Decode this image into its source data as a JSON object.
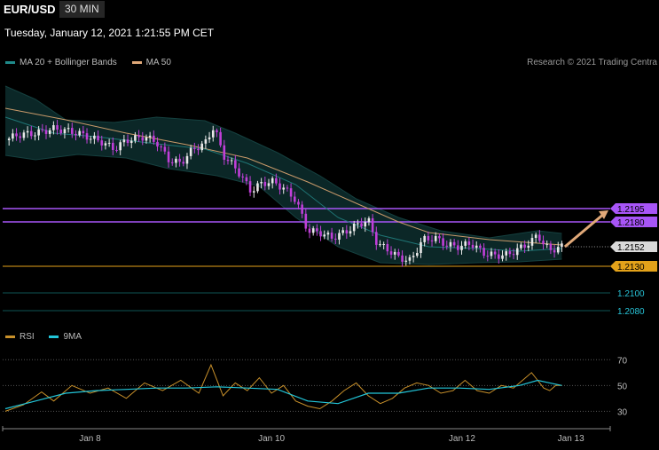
{
  "header": {
    "symbol": "EUR/USD",
    "timeframe": "30 MIN",
    "datetime": "Tuesday, January 12, 2021 1:21:55 PM CET",
    "credit": "Research © 2021 Trading Centra"
  },
  "legend": {
    "main": [
      {
        "label": "MA 20 + Bollinger Bands",
        "color": "#1f8a8a"
      },
      {
        "label": "MA 50",
        "color": "#e0a878"
      }
    ],
    "rsi": [
      {
        "label": "RSI",
        "color": "#c8902a"
      },
      {
        "label": "9MA",
        "color": "#22c5d8"
      }
    ]
  },
  "chart_data": {
    "type": "candlestick",
    "ylim": [
      1.207,
      1.2345
    ],
    "x_ticks": [
      {
        "label": "Jan 8",
        "t": 0.14
      },
      {
        "label": "Jan 10",
        "t": 0.44
      },
      {
        "label": "Jan 12",
        "t": 0.755
      },
      {
        "label": "Jan 13",
        "t": 0.935
      }
    ],
    "close_path": [
      [
        0.0,
        1.2272
      ],
      [
        0.02,
        1.2278
      ],
      [
        0.05,
        1.228
      ],
      [
        0.08,
        1.2285
      ],
      [
        0.1,
        1.2283
      ],
      [
        0.12,
        1.228
      ],
      [
        0.14,
        1.2275
      ],
      [
        0.16,
        1.227
      ],
      [
        0.18,
        1.2262
      ],
      [
        0.2,
        1.2272
      ],
      [
        0.23,
        1.2276
      ],
      [
        0.25,
        1.227
      ],
      [
        0.27,
        1.225
      ],
      [
        0.29,
        1.2246
      ],
      [
        0.31,
        1.2262
      ],
      [
        0.33,
        1.2268
      ],
      [
        0.345,
        1.2288
      ],
      [
        0.36,
        1.2255
      ],
      [
        0.375,
        1.2245
      ],
      [
        0.39,
        1.2232
      ],
      [
        0.405,
        1.2215
      ],
      [
        0.42,
        1.2222
      ],
      [
        0.44,
        1.2226
      ],
      [
        0.46,
        1.2218
      ],
      [
        0.48,
        1.2205
      ],
      [
        0.5,
        1.217
      ],
      [
        0.52,
        1.2168
      ],
      [
        0.54,
        1.2162
      ],
      [
        0.56,
        1.2168
      ],
      [
        0.58,
        1.2176
      ],
      [
        0.6,
        1.2182
      ],
      [
        0.615,
        1.2155
      ],
      [
        0.63,
        1.215
      ],
      [
        0.65,
        1.214
      ],
      [
        0.67,
        1.2136
      ],
      [
        0.69,
        1.216
      ],
      [
        0.71,
        1.2162
      ],
      [
        0.73,
        1.2154
      ],
      [
        0.75,
        1.2152
      ],
      [
        0.77,
        1.2156
      ],
      [
        0.79,
        1.2145
      ],
      [
        0.81,
        1.2142
      ],
      [
        0.83,
        1.2143
      ],
      [
        0.85,
        1.215
      ],
      [
        0.87,
        1.2158
      ],
      [
        0.88,
        1.2166
      ],
      [
        0.89,
        1.2155
      ],
      [
        0.9,
        1.2148
      ],
      [
        0.91,
        1.215
      ],
      [
        0.92,
        1.2152
      ]
    ],
    "ma50_path": [
      [
        0.0,
        1.2308
      ],
      [
        0.1,
        1.2295
      ],
      [
        0.2,
        1.228
      ],
      [
        0.3,
        1.2267
      ],
      [
        0.4,
        1.2252
      ],
      [
        0.5,
        1.2225
      ],
      [
        0.6,
        1.2195
      ],
      [
        0.65,
        1.218
      ],
      [
        0.7,
        1.2168
      ],
      [
        0.8,
        1.216
      ],
      [
        0.92,
        1.2154
      ]
    ],
    "ma20_path": [
      [
        0.0,
        1.2298
      ],
      [
        0.08,
        1.228
      ],
      [
        0.15,
        1.2276
      ],
      [
        0.25,
        1.2268
      ],
      [
        0.33,
        1.2262
      ],
      [
        0.4,
        1.2246
      ],
      [
        0.48,
        1.2222
      ],
      [
        0.55,
        1.2185
      ],
      [
        0.62,
        1.2165
      ],
      [
        0.7,
        1.2152
      ],
      [
        0.78,
        1.215
      ],
      [
        0.85,
        1.2147
      ],
      [
        0.92,
        1.215
      ]
    ],
    "bb_upper_path": [
      [
        0.0,
        1.2333
      ],
      [
        0.05,
        1.2318
      ],
      [
        0.1,
        1.2295
      ],
      [
        0.18,
        1.2292
      ],
      [
        0.25,
        1.2298
      ],
      [
        0.33,
        1.2294
      ],
      [
        0.38,
        1.228
      ],
      [
        0.45,
        1.2258
      ],
      [
        0.52,
        1.2232
      ],
      [
        0.58,
        1.2206
      ],
      [
        0.65,
        1.2185
      ],
      [
        0.72,
        1.217
      ],
      [
        0.8,
        1.2162
      ],
      [
        0.88,
        1.217
      ],
      [
        0.92,
        1.2167
      ]
    ],
    "bb_lower_path": [
      [
        0.0,
        1.2255
      ],
      [
        0.05,
        1.225
      ],
      [
        0.12,
        1.2256
      ],
      [
        0.2,
        1.2252
      ],
      [
        0.27,
        1.224
      ],
      [
        0.35,
        1.2232
      ],
      [
        0.42,
        1.222
      ],
      [
        0.48,
        1.2185
      ],
      [
        0.55,
        1.2152
      ],
      [
        0.62,
        1.2134
      ],
      [
        0.7,
        1.2132
      ],
      [
        0.78,
        1.2134
      ],
      [
        0.85,
        1.2135
      ],
      [
        0.92,
        1.2138
      ]
    ],
    "levels": [
      {
        "value": 1.2195,
        "label": "1.2195",
        "color": "#a855f7",
        "role": "resistance"
      },
      {
        "value": 1.218,
        "label": "1.2180",
        "color": "#a855f7",
        "role": "resistance"
      },
      {
        "value": 1.2152,
        "label": "1.2152",
        "color": "#d9d9d9",
        "role": "last-price"
      },
      {
        "value": 1.213,
        "label": "1.2130",
        "color": "#e3a21a",
        "role": "support"
      },
      {
        "value": 1.21,
        "label": "1.2100",
        "color": "#0e5555",
        "role": "support"
      },
      {
        "value": 1.208,
        "label": "1.2080",
        "color": "#0e5555",
        "role": "support"
      }
    ],
    "forecast_arrow": {
      "from": [
        0.925,
        1.2152
      ],
      "to": [
        1.0,
        1.2193
      ],
      "color": "#e0a878"
    },
    "rsi": {
      "ylim": [
        22,
        75
      ],
      "levels": [
        70,
        50,
        30
      ],
      "rsi_path": [
        [
          0.0,
          30
        ],
        [
          0.03,
          35
        ],
        [
          0.06,
          45
        ],
        [
          0.08,
          38
        ],
        [
          0.11,
          50
        ],
        [
          0.14,
          44
        ],
        [
          0.17,
          48
        ],
        [
          0.2,
          40
        ],
        [
          0.23,
          52
        ],
        [
          0.26,
          46
        ],
        [
          0.29,
          54
        ],
        [
          0.32,
          44
        ],
        [
          0.34,
          66
        ],
        [
          0.36,
          42
        ],
        [
          0.38,
          52
        ],
        [
          0.4,
          46
        ],
        [
          0.42,
          56
        ],
        [
          0.44,
          44
        ],
        [
          0.46,
          50
        ],
        [
          0.48,
          38
        ],
        [
          0.5,
          34
        ],
        [
          0.52,
          32
        ],
        [
          0.54,
          38
        ],
        [
          0.56,
          46
        ],
        [
          0.58,
          52
        ],
        [
          0.6,
          42
        ],
        [
          0.62,
          36
        ],
        [
          0.64,
          40
        ],
        [
          0.66,
          48
        ],
        [
          0.68,
          52
        ],
        [
          0.7,
          50
        ],
        [
          0.72,
          44
        ],
        [
          0.74,
          46
        ],
        [
          0.76,
          54
        ],
        [
          0.78,
          46
        ],
        [
          0.8,
          44
        ],
        [
          0.82,
          50
        ],
        [
          0.84,
          48
        ],
        [
          0.86,
          56
        ],
        [
          0.87,
          60
        ],
        [
          0.88,
          54
        ],
        [
          0.89,
          48
        ],
        [
          0.9,
          46
        ],
        [
          0.91,
          50
        ],
        [
          0.92,
          50
        ]
      ],
      "ma_path": [
        [
          0.0,
          32
        ],
        [
          0.05,
          38
        ],
        [
          0.1,
          44
        ],
        [
          0.15,
          46
        ],
        [
          0.2,
          47
        ],
        [
          0.25,
          48
        ],
        [
          0.3,
          48
        ],
        [
          0.35,
          49
        ],
        [
          0.4,
          48
        ],
        [
          0.45,
          47
        ],
        [
          0.5,
          38
        ],
        [
          0.55,
          36
        ],
        [
          0.6,
          44
        ],
        [
          0.65,
          44
        ],
        [
          0.7,
          48
        ],
        [
          0.75,
          48
        ],
        [
          0.8,
          47
        ],
        [
          0.85,
          50
        ],
        [
          0.88,
          54
        ],
        [
          0.9,
          52
        ],
        [
          0.92,
          50
        ]
      ]
    }
  }
}
